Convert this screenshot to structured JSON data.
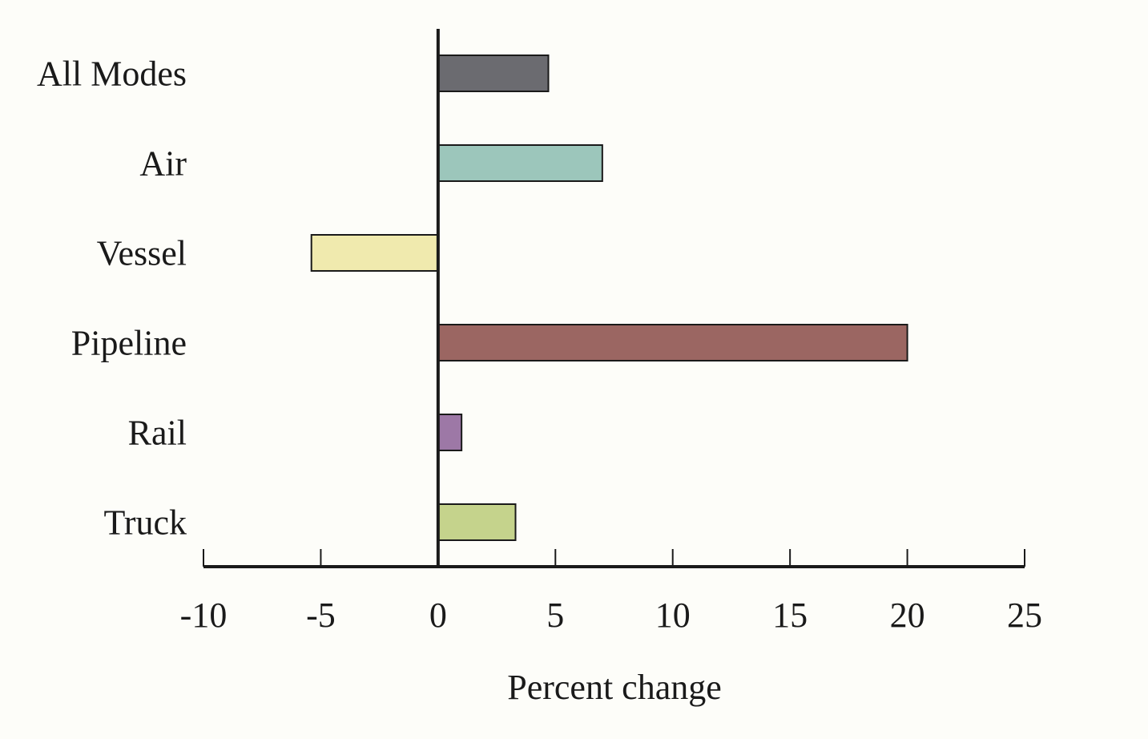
{
  "chart_data": {
    "type": "bar",
    "orientation": "horizontal",
    "categories": [
      "All Modes",
      "Air",
      "Vessel",
      "Pipeline",
      "Rail",
      "Truck"
    ],
    "values": [
      4.7,
      7.0,
      -5.4,
      20.0,
      1.0,
      3.3
    ],
    "colors": [
      "#6b6b70",
      "#9cc6bb",
      "#f0eaae",
      "#9b6662",
      "#9d78a6",
      "#c5d38c"
    ],
    "xlabel": "Percent change",
    "ylabel": "",
    "title": "",
    "xlim": [
      -10,
      25
    ],
    "xticks": [
      -10,
      -5,
      0,
      5,
      10,
      15,
      20,
      25
    ],
    "xtick_labels": [
      "-10",
      "-5",
      "0",
      "5",
      "10",
      "15",
      "20",
      "25"
    ],
    "grid": false,
    "legend": "none"
  }
}
